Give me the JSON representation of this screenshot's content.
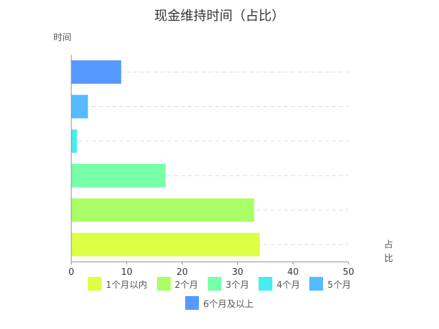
{
  "chart_data": {
    "type": "bar",
    "orientation": "horizontal",
    "title": "现金维持时间（占比）",
    "ylabel": "时间",
    "xlabel": "占比",
    "xlim": [
      0,
      50
    ],
    "xticks": [
      0,
      10,
      20,
      30,
      40,
      50
    ],
    "grid": "dashed-horizontal",
    "legend_position": "bottom",
    "categories": [
      "1个月以内",
      "2个月",
      "3个月",
      "4个月",
      "5个月",
      "6个月及以上"
    ],
    "values": [
      34,
      33,
      17,
      1,
      3,
      9
    ],
    "colors": [
      "#ddff44",
      "#aaff66",
      "#77ffaa",
      "#44eeee",
      "#55bbff",
      "#5599ff"
    ]
  }
}
